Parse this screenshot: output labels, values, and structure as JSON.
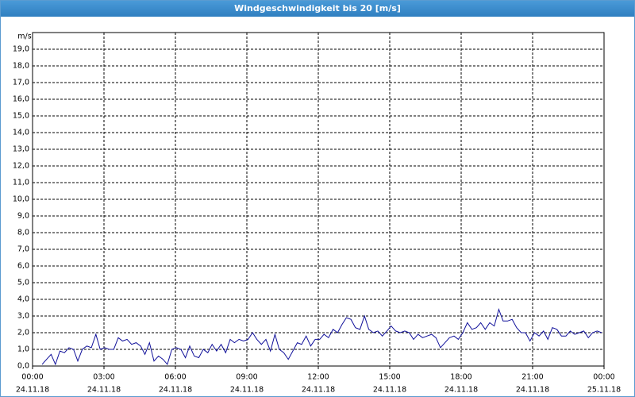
{
  "chart_data": {
    "type": "line",
    "title": "Windgeschwindigkeit bis 20 [m/s]",
    "y_label": "m/s",
    "xlim": [
      0,
      24
    ],
    "xticks": [
      {
        "value": 0,
        "label": "00:00"
      },
      {
        "value": 3,
        "label": "03:00"
      },
      {
        "value": 6,
        "label": "06:00"
      },
      {
        "value": 9,
        "label": "09:00"
      },
      {
        "value": 12,
        "label": "12:00"
      },
      {
        "value": 15,
        "label": "15:00"
      },
      {
        "value": 18,
        "label": "18:00"
      },
      {
        "value": 21,
        "label": "21:00"
      },
      {
        "value": 24,
        "label": "00:00"
      }
    ],
    "xtick_dates": [
      "24.11.18",
      "24.11.18",
      "24.11.18",
      "24.11.18",
      "24.11.18",
      "24.11.18",
      "24.11.18",
      "24.11.18",
      "25.11.18"
    ],
    "ylim": [
      0,
      20
    ],
    "yticks": [
      {
        "value": 0,
        "label": "0,0"
      },
      {
        "value": 1,
        "label": "1,0"
      },
      {
        "value": 2,
        "label": "2,0"
      },
      {
        "value": 3,
        "label": "3,0"
      },
      {
        "value": 4,
        "label": "4,0"
      },
      {
        "value": 5,
        "label": "5,0"
      },
      {
        "value": 6,
        "label": "6,0"
      },
      {
        "value": 7,
        "label": "7,0"
      },
      {
        "value": 8,
        "label": "8,0"
      },
      {
        "value": 9,
        "label": "9,0"
      },
      {
        "value": 10,
        "label": "10,0"
      },
      {
        "value": 11,
        "label": "11,0"
      },
      {
        "value": 12,
        "label": "12,0"
      },
      {
        "value": 13,
        "label": "13,0"
      },
      {
        "value": 14,
        "label": "14,0"
      },
      {
        "value": 15,
        "label": "15,0"
      },
      {
        "value": 16,
        "label": "16,0"
      },
      {
        "value": 17,
        "label": "17,0"
      },
      {
        "value": 18,
        "label": "18,0"
      },
      {
        "value": 19,
        "label": "19,0"
      }
    ],
    "grid": true,
    "color": "#10109a",
    "x": [
      0.4,
      0.59,
      0.78,
      0.96,
      1.15,
      1.34,
      1.53,
      1.72,
      1.9,
      2.09,
      2.28,
      2.47,
      2.66,
      2.84,
      3.03,
      3.22,
      3.41,
      3.6,
      3.78,
      3.97,
      4.16,
      4.35,
      4.54,
      4.72,
      4.91,
      5.1,
      5.29,
      5.48,
      5.66,
      5.85,
      6.04,
      6.23,
      6.42,
      6.6,
      6.79,
      6.98,
      7.17,
      7.36,
      7.54,
      7.73,
      7.92,
      8.11,
      8.3,
      8.48,
      8.67,
      8.86,
      9.05,
      9.24,
      9.42,
      9.61,
      9.8,
      9.99,
      10.18,
      10.36,
      10.55,
      10.74,
      10.93,
      11.12,
      11.3,
      11.49,
      11.68,
      11.87,
      12.06,
      12.24,
      12.43,
      12.62,
      12.81,
      13.0,
      13.18,
      13.37,
      13.56,
      13.75,
      13.94,
      14.12,
      14.31,
      14.5,
      14.69,
      14.88,
      15.06,
      15.25,
      15.44,
      15.63,
      15.82,
      16.0,
      16.19,
      16.38,
      16.57,
      16.76,
      16.94,
      17.13,
      17.32,
      17.51,
      17.7,
      17.88,
      18.07,
      18.26,
      18.45,
      18.64,
      18.82,
      19.01,
      19.2,
      19.39,
      19.58,
      19.76,
      19.95,
      20.14,
      20.33,
      20.52,
      20.7,
      20.89,
      21.08,
      21.27,
      21.46,
      21.64,
      21.83,
      22.02,
      22.21,
      22.4,
      22.58,
      22.77,
      22.96,
      23.15,
      23.34,
      23.52,
      23.71,
      23.9
    ],
    "values": [
      0.1,
      0.4,
      0.7,
      0.1,
      0.9,
      0.8,
      1.1,
      1.0,
      0.3,
      1.0,
      1.2,
      1.1,
      1.9,
      1.0,
      1.1,
      1.0,
      1.0,
      1.7,
      1.5,
      1.6,
      1.3,
      1.4,
      1.2,
      0.7,
      1.4,
      0.3,
      0.6,
      0.4,
      0.1,
      1.0,
      1.1,
      1.0,
      0.5,
      1.2,
      0.6,
      0.5,
      1.0,
      0.8,
      1.3,
      0.9,
      1.3,
      0.8,
      1.6,
      1.4,
      1.6,
      1.5,
      1.6,
      2.0,
      1.6,
      1.3,
      1.6,
      0.9,
      1.9,
      1.0,
      0.8,
      0.4,
      0.9,
      1.4,
      1.3,
      1.8,
      1.2,
      1.6,
      1.6,
      1.9,
      1.7,
      2.2,
      2.0,
      2.5,
      2.9,
      2.8,
      2.3,
      2.2,
      3.0,
      2.2,
      2.0,
      2.1,
      1.8,
      2.1,
      2.4,
      2.1,
      2.0,
      2.1,
      2.0,
      1.6,
      1.9,
      1.7,
      1.8,
      1.9,
      1.7,
      1.1,
      1.4,
      1.7,
      1.8,
      1.6,
      2.0,
      2.6,
      2.2,
      2.3,
      2.6,
      2.2,
      2.6,
      2.4,
      3.4,
      2.7,
      2.7,
      2.8,
      2.3,
      2.0,
      2.0,
      1.5,
      2.0,
      1.8,
      2.1,
      1.6,
      2.3,
      2.2,
      1.8,
      1.8,
      2.1,
      1.9,
      2.0,
      2.1,
      1.7,
      2.0,
      2.1,
      2.0
    ]
  }
}
